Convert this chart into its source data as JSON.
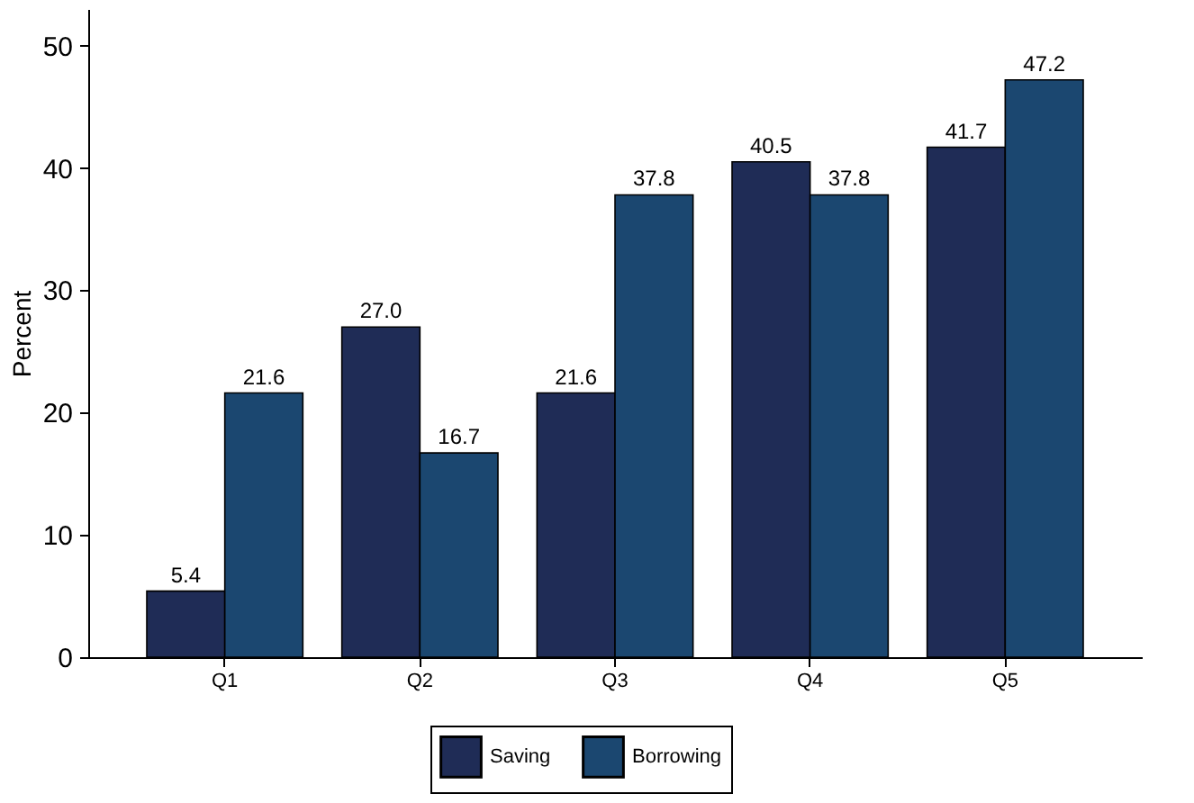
{
  "chart_data": {
    "type": "bar",
    "ylabel": "Percent",
    "categories": [
      "Q1",
      "Q2",
      "Q3",
      "Q4",
      "Q5"
    ],
    "series": [
      {
        "name": "Saving",
        "color": "#1f2c56",
        "values": [
          5.4,
          27.0,
          21.6,
          40.5,
          41.7
        ],
        "value_labels": [
          "5.4",
          "27.0",
          "21.6",
          "40.5",
          "41.7"
        ]
      },
      {
        "name": "Borrowing",
        "color": "#1b4770",
        "values": [
          21.6,
          16.7,
          37.8,
          37.8,
          47.2
        ],
        "value_labels": [
          "21.6",
          "16.7",
          "37.8",
          "37.8",
          "47.2"
        ]
      }
    ],
    "ylim": [
      0,
      53
    ],
    "yticks": [
      0,
      10,
      20,
      30,
      40,
      50
    ],
    "grid": false,
    "legend": "bottom"
  }
}
